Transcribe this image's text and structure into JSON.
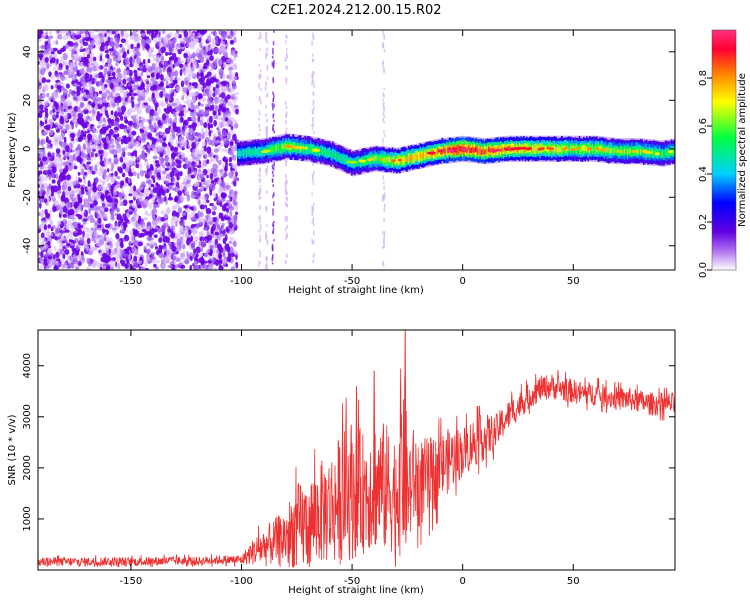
{
  "figure": {
    "title": "C2E1.2024.212.00.15.R02"
  },
  "chart_data": [
    {
      "type": "heatmap",
      "xlabel": "Height of straight line (km)",
      "ylabel": "Frequency (Hz)",
      "xlim": [
        -192,
        96
      ],
      "ylim": [
        -50,
        49
      ],
      "x_ticks": [
        -150,
        -100,
        -50,
        0,
        50
      ],
      "y_ticks": [
        -40,
        -20,
        0,
        20,
        40
      ],
      "colorbar": {
        "label": "Normalized spectral amplitude",
        "range": [
          0,
          1
        ],
        "ticks": [
          0.0,
          0.2,
          0.4,
          0.6,
          0.8
        ],
        "tick_labels": [
          "0.0",
          "0.2",
          "0.4",
          "0.6",
          "0.8"
        ],
        "colors": [
          "#ffffff",
          "#7000e0",
          "#0000ff",
          "#00e0ff",
          "#00ff40",
          "#ffff00",
          "#ff8000",
          "#ff0040",
          "#ff3090"
        ]
      },
      "regions": [
        {
          "desc": "noise",
          "x_range": [
            -192,
            -102
          ],
          "y_range": [
            -50,
            49
          ],
          "amplitude": 0.15
        },
        {
          "desc": "signal band",
          "x_range": [
            -102,
            96
          ],
          "center_hz": 0,
          "width_hz": 6
        }
      ],
      "center_line": {
        "x": [
          -102,
          -90,
          -80,
          -70,
          -60,
          -50,
          -40,
          -30,
          -20,
          -10,
          0,
          10,
          20,
          30,
          40,
          50,
          60,
          70,
          80,
          90,
          96
        ],
        "y": [
          -2,
          -1,
          1,
          0,
          -2,
          -6,
          -4,
          -5,
          -3,
          -1,
          0,
          -1,
          0,
          0,
          0,
          0,
          0,
          -1,
          -1,
          -2,
          -1
        ],
        "amplitude": [
          0.45,
          0.5,
          0.65,
          0.55,
          0.5,
          0.5,
          0.6,
          0.7,
          0.75,
          0.8,
          0.95,
          0.85,
          0.8,
          0.75,
          0.7,
          0.65,
          0.65,
          0.6,
          0.6,
          0.55,
          0.55
        ]
      }
    },
    {
      "type": "line",
      "xlabel": "Height of straight line (km)",
      "ylabel": "SNR (10 * v/v)",
      "xlim": [
        -192,
        96
      ],
      "ylim": [
        0,
        4700
      ],
      "x_ticks": [
        -150,
        -100,
        -50,
        0,
        50
      ],
      "y_ticks": [
        1000,
        2000,
        3000,
        4000
      ],
      "color": "#ee3030",
      "series": [
        {
          "x": [
            -192,
            -180,
            -170,
            -160,
            -150,
            -140,
            -130,
            -120,
            -110,
            -100,
            -95,
            -90,
            -85,
            -80,
            -75,
            -70,
            -65,
            -60,
            -55,
            -50,
            -45,
            -40,
            -35,
            -30,
            -27,
            -25,
            -22,
            -20,
            -15,
            -10,
            -5,
            0,
            5,
            10,
            15,
            20,
            25,
            30,
            35,
            40,
            45,
            50,
            55,
            60,
            65,
            70,
            75,
            80,
            85,
            90,
            96
          ],
          "values": [
            160,
            160,
            160,
            170,
            160,
            170,
            180,
            170,
            200,
            200,
            350,
            450,
            550,
            650,
            800,
            900,
            1100,
            1200,
            1400,
            1600,
            1500,
            1700,
            1600,
            1500,
            2400,
            1500,
            1800,
            1700,
            1800,
            2000,
            2200,
            2300,
            2500,
            2600,
            2700,
            3000,
            3200,
            3400,
            3550,
            3600,
            3550,
            3500,
            3450,
            3450,
            3400,
            3350,
            3350,
            3300,
            3250,
            3250,
            3250
          ],
          "noise_amplitude": [
            90,
            90,
            90,
            90,
            90,
            90,
            90,
            90,
            90,
            100,
            250,
            400,
            450,
            600,
            900,
            900,
            1000,
            1100,
            1300,
            1400,
            1200,
            1300,
            1300,
            1200,
            2200,
            1200,
            1000,
            900,
            800,
            700,
            600,
            500,
            500,
            450,
            350,
            300,
            280,
            250,
            250,
            250,
            250,
            240,
            230,
            230,
            230,
            230,
            230,
            230,
            230,
            230,
            230
          ],
          "spikes": [
            {
              "x": -26,
              "y": 4700
            },
            {
              "x": -40,
              "y": 3900
            },
            {
              "x": -48,
              "y": 3600
            }
          ]
        }
      ]
    }
  ]
}
